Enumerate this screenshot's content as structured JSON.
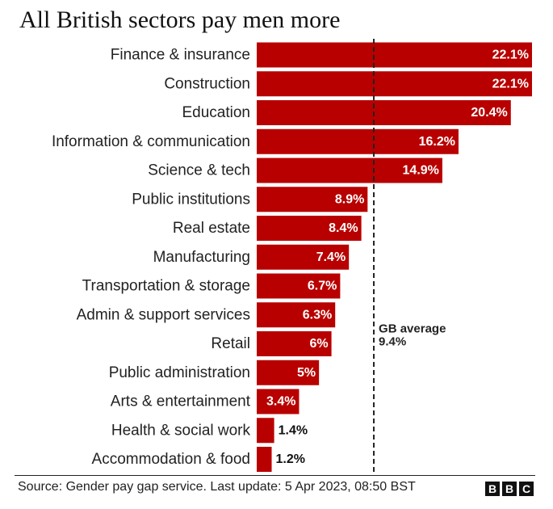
{
  "chart_data": {
    "type": "bar",
    "orientation": "horizontal",
    "title": "All British sectors pay men more",
    "categories": [
      "Finance & insurance",
      "Construction",
      "Education",
      "Information & communication",
      "Science & tech",
      "Public institutions",
      "Real estate",
      "Manufacturing",
      "Transportation & storage",
      "Admin & support services",
      "Retail",
      "Public administration",
      "Arts & entertainment",
      "Health & social work",
      "Accommodation & food"
    ],
    "values": [
      22.1,
      22.1,
      20.4,
      16.2,
      14.9,
      8.9,
      8.4,
      7.4,
      6.7,
      6.3,
      6,
      5,
      3.4,
      1.4,
      1.2
    ],
    "value_labels": [
      "22.1%",
      "22.1%",
      "20.4%",
      "16.2%",
      "14.9%",
      "8.9%",
      "8.4%",
      "7.4%",
      "6.7%",
      "6.3%",
      "6%",
      "5%",
      "3.4%",
      "1.4%",
      "1.2%"
    ],
    "xlim": [
      0,
      22.1
    ],
    "grid": false,
    "bar_color": "#b80000",
    "reference_line": {
      "value": 9.4,
      "label": "GB average",
      "value_label": "9.4%"
    }
  },
  "footer": {
    "source": "Source: Gender pay gap service. Last update: 5 Apr 2023, 08:50 BST",
    "logo_letters": [
      "B",
      "B",
      "C"
    ]
  }
}
